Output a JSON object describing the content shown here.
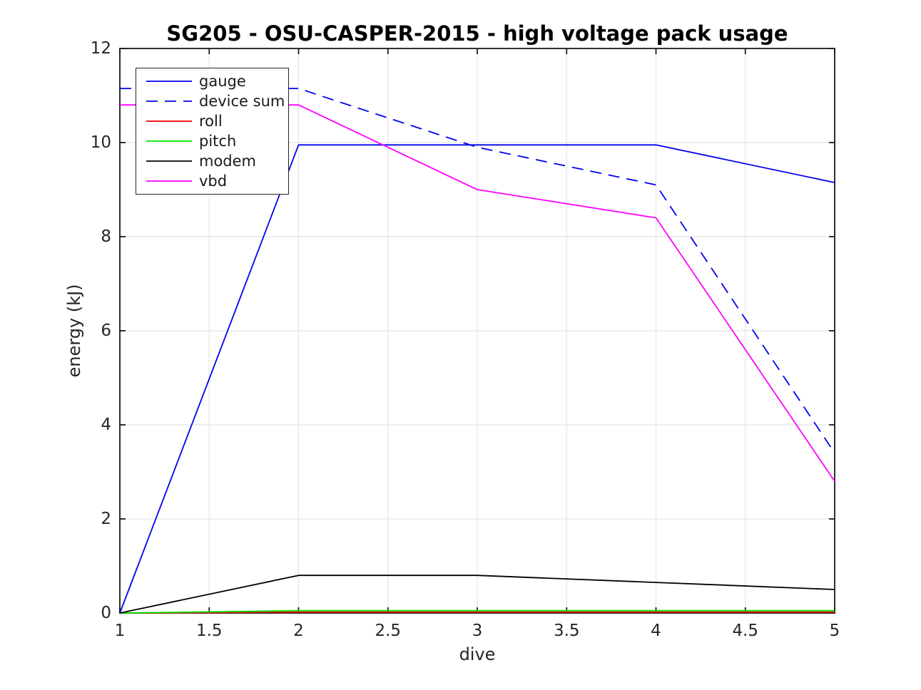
{
  "chart_data": {
    "type": "line",
    "title": "SG205 - OSU-CASPER-2015 - high voltage pack usage",
    "xlabel": "dive",
    "ylabel": "energy (kJ)",
    "xlim": [
      1,
      5
    ],
    "ylim": [
      0,
      12
    ],
    "xticks": [
      1,
      1.5,
      2,
      2.5,
      3,
      3.5,
      4,
      4.5,
      5
    ],
    "yticks": [
      0,
      2,
      4,
      6,
      8,
      10,
      12
    ],
    "grid": true,
    "legend_position": "upper-left",
    "x": [
      1,
      2,
      3,
      4,
      5
    ],
    "series": [
      {
        "name": "gauge",
        "color": "#0000ee",
        "style": "solid",
        "values": [
          0,
          9.95,
          9.95,
          9.95,
          9.15
        ]
      },
      {
        "name": "device sum",
        "color": "#0000ee",
        "style": "dashed",
        "values": [
          11.15,
          11.15,
          9.9,
          9.1,
          3.4
        ]
      },
      {
        "name": "roll",
        "color": "#ee0000",
        "style": "solid",
        "values": [
          0,
          0.02,
          0.02,
          0.02,
          0.02
        ]
      },
      {
        "name": "pitch",
        "color": "#00e600",
        "style": "solid",
        "values": [
          0,
          0.05,
          0.05,
          0.05,
          0.05
        ]
      },
      {
        "name": "modem",
        "color": "#000000",
        "style": "solid",
        "values": [
          0,
          0.8,
          0.8,
          0.65,
          0.5
        ]
      },
      {
        "name": "vbd",
        "color": "#ff00ff",
        "style": "solid",
        "values": [
          10.8,
          10.8,
          9.0,
          8.4,
          2.8
        ]
      }
    ],
    "colors": {
      "grid": "#e4e4e4",
      "axis": "#1a1a1a",
      "tick_label": "#262626",
      "title": "#000000",
      "background": "#ffffff"
    }
  }
}
